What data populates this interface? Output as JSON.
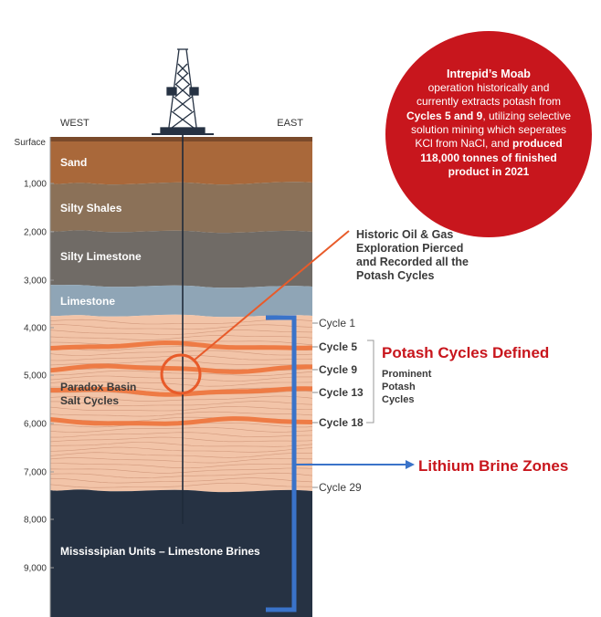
{
  "diagram": {
    "direction_labels": {
      "west": "WEST",
      "east": "EAST"
    },
    "depth_axis": {
      "surface_label": "Surface",
      "ticks": [
        "1,000",
        "2,000",
        "3,000",
        "4,000",
        "5,000",
        "6,000",
        "7,000",
        "8,000",
        "9,000"
      ]
    },
    "layers": [
      {
        "name": "Sand",
        "color": "#a9683a"
      },
      {
        "name": "Silty Shales",
        "color": "#8b7158"
      },
      {
        "name": "Silty Limestone",
        "color": "#706b66"
      },
      {
        "name": "Limestone",
        "color": "#8fa5b6"
      },
      {
        "name": "Paradox Basin Salt Cycles",
        "line1": "Paradox Basin",
        "line2": "Salt Cycles",
        "color": "#f2c4a8"
      },
      {
        "name": "Mississipian Units – Limestone Brines",
        "color": "#263243"
      }
    ],
    "cycles": [
      "Cycle 1",
      "Cycle 5",
      "Cycle 9",
      "Cycle 13",
      "Cycle 18",
      "Cycle 29"
    ],
    "annotations": {
      "exploration_line1": "Historic Oil & Gas",
      "exploration_line2": "Exploration Pierced",
      "exploration_line3": "and Recorded all the",
      "exploration_line4": "Potash Cycles",
      "potash_title": "Potash Cycles Defined",
      "prominent_line1": "Prominent",
      "prominent_line2": "Potash",
      "prominent_line3": "Cycles",
      "lithium": "Lithium Brine Zones"
    },
    "callout": {
      "title": "Intrepid’s Moab",
      "text_1": " operation historically and currently extracts potash from ",
      "bold_1": "Cycles 5 and 9",
      "text_2": ", utilizing selective solution mining which seperates KCl from NaCl, and ",
      "bold_2": "produced 118,000 tonnes of finished product in 2021"
    },
    "colors": {
      "accent_red": "#c8161d",
      "bracket_blue": "#3a73c9",
      "potash_band": "#ee7b45",
      "orange_pointer": "#e85b2a"
    }
  }
}
